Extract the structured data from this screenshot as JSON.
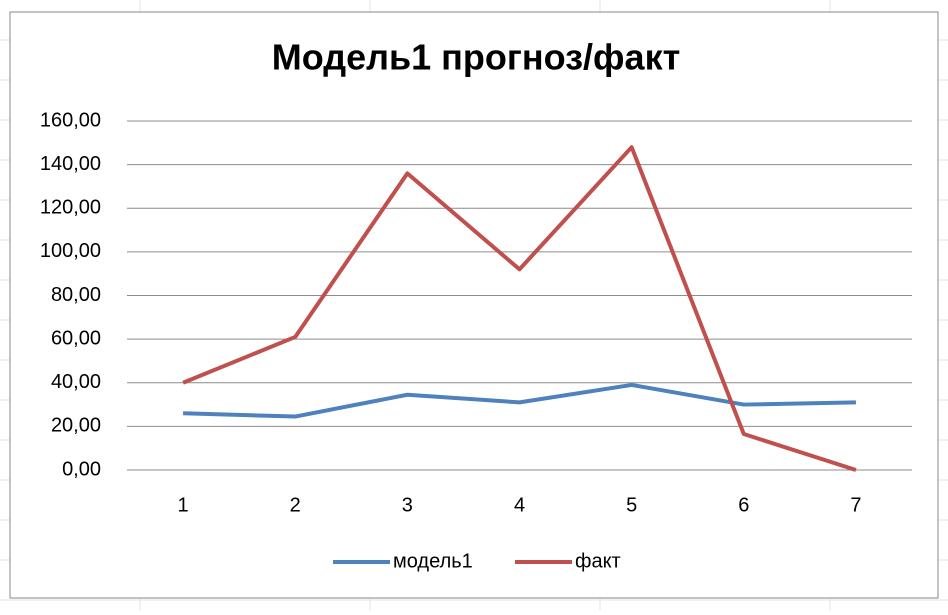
{
  "chart_data": {
    "type": "line",
    "title": "Модель1 прогноз/факт",
    "categories": [
      "1",
      "2",
      "3",
      "4",
      "5",
      "6",
      "7"
    ],
    "series": [
      {
        "name": "модель1",
        "color": "#4f81bd",
        "values": [
          26,
          24.5,
          34.5,
          31,
          39,
          30,
          31
        ]
      },
      {
        "name": "факт",
        "color": "#c0504d",
        "values": [
          40,
          61,
          136,
          92,
          148,
          16.5,
          0
        ]
      }
    ],
    "ylim": [
      0,
      160
    ],
    "yticks": [
      {
        "value": 0,
        "label": "0,00"
      },
      {
        "value": 20,
        "label": "20,00"
      },
      {
        "value": 40,
        "label": "40,00"
      },
      {
        "value": 60,
        "label": "60,00"
      },
      {
        "value": 80,
        "label": "80,00"
      },
      {
        "value": 100,
        "label": "100,00"
      },
      {
        "value": 120,
        "label": "120,00"
      },
      {
        "value": 140,
        "label": "140,00"
      },
      {
        "value": 160,
        "label": "160,00"
      }
    ],
    "grid": true,
    "legend": "bottom"
  }
}
